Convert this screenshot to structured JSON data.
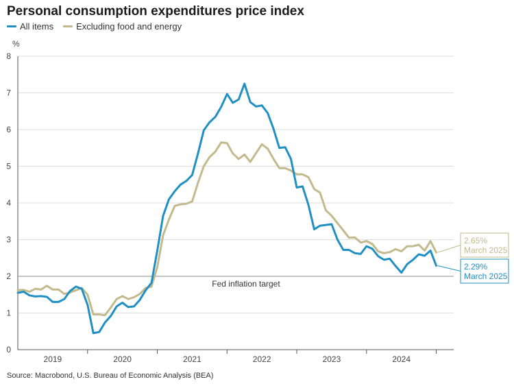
{
  "title": "Personal consumption expenditures price index",
  "source": "Source: Macrobond, U.S. Bureau of Economic Analysis (BEA)",
  "colors": {
    "all_items": "#1f8fc4",
    "core": "#c2b98c",
    "grid": "#dddddd",
    "target": "#888888"
  },
  "chart_data": {
    "type": "line",
    "ylabel": "%",
    "ylim": [
      0,
      8
    ],
    "yticks": [
      "0",
      "1",
      "2",
      "3",
      "4",
      "5",
      "6",
      "7",
      "8"
    ],
    "xlim": [
      2019.0,
      2025.25
    ],
    "year_labels": [
      "2019",
      "2020",
      "2021",
      "2022",
      "2023",
      "2024"
    ],
    "reference_line": {
      "value": 2,
      "label": "Fed inflation target"
    },
    "series": [
      {
        "name": "All items",
        "start": 2019.0,
        "step": 0.08333,
        "values": [
          1.55,
          1.58,
          1.48,
          1.45,
          1.46,
          1.44,
          1.3,
          1.3,
          1.38,
          1.6,
          1.72,
          1.66,
          1.22,
          0.45,
          0.48,
          0.74,
          0.92,
          1.18,
          1.28,
          1.16,
          1.18,
          1.36,
          1.62,
          1.82,
          2.7,
          3.65,
          4.1,
          4.32,
          4.5,
          4.6,
          4.76,
          5.35,
          5.98,
          6.2,
          6.35,
          6.62,
          6.97,
          6.73,
          6.82,
          7.25,
          6.75,
          6.63,
          6.66,
          6.45,
          6.02,
          5.5,
          5.52,
          5.2,
          4.42,
          4.45,
          3.95,
          3.28,
          3.38,
          3.4,
          3.42,
          3.0,
          2.72,
          2.72,
          2.63,
          2.61,
          2.82,
          2.75,
          2.55,
          2.45,
          2.48,
          2.28,
          2.1,
          2.33,
          2.45,
          2.6,
          2.56,
          2.7,
          2.29
        ]
      },
      {
        "name": "Excluding food and energy",
        "start": 2019.0,
        "step": 0.08333,
        "values": [
          1.62,
          1.63,
          1.58,
          1.66,
          1.64,
          1.74,
          1.64,
          1.64,
          1.52,
          1.56,
          1.62,
          1.68,
          1.5,
          0.96,
          0.96,
          0.94,
          1.15,
          1.38,
          1.46,
          1.38,
          1.43,
          1.52,
          1.68,
          1.72,
          2.25,
          3.12,
          3.55,
          3.92,
          3.96,
          3.98,
          4.04,
          4.55,
          5.0,
          5.25,
          5.4,
          5.65,
          5.63,
          5.35,
          5.2,
          5.32,
          5.12,
          5.36,
          5.6,
          5.48,
          5.2,
          4.95,
          4.95,
          4.88,
          4.78,
          4.78,
          4.7,
          4.38,
          4.28,
          3.8,
          3.65,
          3.45,
          3.25,
          3.05,
          3.06,
          2.92,
          2.96,
          2.88,
          2.68,
          2.63,
          2.66,
          2.74,
          2.68,
          2.82,
          2.82,
          2.86,
          2.7,
          2.96,
          2.65
        ]
      }
    ],
    "end_labels": [
      {
        "value": "2.65%",
        "date": "March 2025"
      },
      {
        "value": "2.29%",
        "date": "March 2025"
      }
    ]
  }
}
